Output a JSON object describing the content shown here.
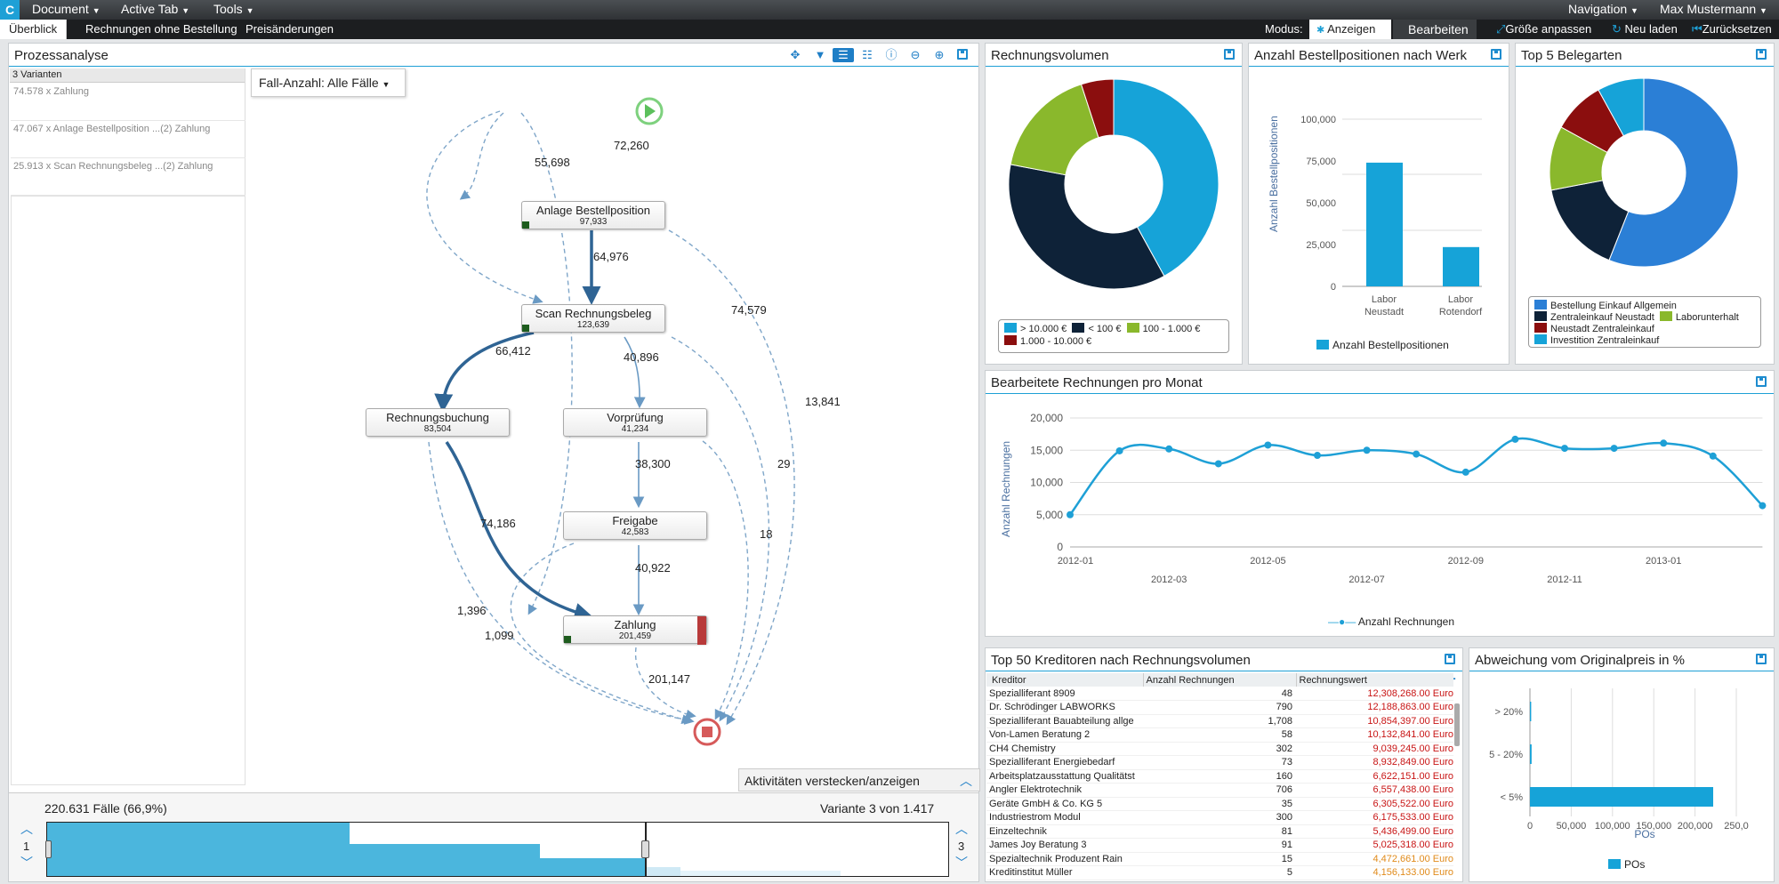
{
  "menu": {
    "logo": "C",
    "document": "Document",
    "active_tab": "Active Tab",
    "tools": "Tools",
    "navigation": "Navigation",
    "user": "Max Mustermann"
  },
  "tabs": [
    "Überblick",
    "Rechnungen ohne Bestellung",
    "Preisänderungen"
  ],
  "toolbar": {
    "mode_label": "Modus:",
    "view_label": "Anzeigen",
    "edit_label": "Bearbeiten",
    "fit_label": "Größe anpassen",
    "reload_label": "Neu laden",
    "reset_label": "Zurücksetzen"
  },
  "process": {
    "title": "Prozessanalyse",
    "variants_header": "3 Varianten",
    "variants": [
      "74.578 x Zahlung",
      "47.067 x Anlage Bestellposition ...(2) Zahlung",
      "25.913 x Scan Rechnungsbeleg ...(2) Zahlung"
    ],
    "case_filter": "Fall-Anzahl: Alle Fälle",
    "nodes": [
      {
        "name": "Anlage Bestellposition",
        "count": "97,933"
      },
      {
        "name": "Scan Rechnungsbeleg",
        "count": "123,639"
      },
      {
        "name": "Rechnungsbuchung",
        "count": "83,504"
      },
      {
        "name": "Vorprüfung",
        "count": "41,234"
      },
      {
        "name": "Freigabe",
        "count": "42,583"
      },
      {
        "name": "Zahlung",
        "count": "201,459"
      }
    ],
    "edges": [
      "55,698",
      "72,260",
      "64,976",
      "74,579",
      "66,412",
      "40,896",
      "13,841",
      "38,300",
      "29",
      "74,186",
      "18",
      "1,396",
      "1,099",
      "40,922",
      "201,147"
    ],
    "toggle_activities": "Aktivitäten verstecken/anzeigen",
    "cases_summary": "220.631 Fälle (66,9%)",
    "variant_summary": "Variante 3 von 1.417",
    "slider_min": "1",
    "slider_max": "3"
  },
  "colors": {
    "accent": "#1ea0d6",
    "navy": "#0e2238",
    "green": "#8ab82c",
    "darkred": "#8b0e0e"
  },
  "volume": {
    "title": "Rechnungsvolumen",
    "legend": [
      "> 10.000 €",
      "< 100 €",
      "100 - 1.000 €",
      "1.000 - 10.000 €"
    ],
    "slices": [
      {
        "label": "> 10.000 €",
        "value": 42,
        "color": "#16a3d8"
      },
      {
        "label": "< 100 €",
        "value": 36,
        "color": "#0e2238"
      },
      {
        "label": "100 - 1.000 €",
        "value": 17,
        "color": "#8ab82c"
      },
      {
        "label": "1.000 - 10.000 €",
        "value": 5,
        "color": "#8b0e0e"
      }
    ]
  },
  "werk": {
    "title": "Anzahl Bestellpositionen nach Werk",
    "ylabel": "Anzahl Bestellpositionen",
    "legend": "Anzahl Bestellpositionen",
    "ticks": [
      "100,000",
      "75,000",
      "50,000",
      "25,000",
      "0"
    ],
    "categories": [
      [
        "Labor",
        "Neustadt"
      ],
      [
        "Labor",
        "Rotendorf"
      ]
    ],
    "values": [
      74000,
      23500
    ]
  },
  "belegarten": {
    "title": "Top 5 Belegarten",
    "legend": [
      "Bestellung Einkauf Allgemein",
      "Zentraleinkauf Neustadt",
      "Laborunterhalt",
      "Neustadt Zentraleinkauf",
      "Investition Zentraleinkauf"
    ],
    "slices": [
      {
        "label": "Bestellung Einkauf Allgemein",
        "value": 56,
        "color": "#2b7fd6"
      },
      {
        "label": "Zentraleinkauf Neustadt",
        "value": 16,
        "color": "#0e2238"
      },
      {
        "label": "Laborunterhalt",
        "value": 11,
        "color": "#8ab82c"
      },
      {
        "label": "Neustadt Zentraleinkauf",
        "value": 9,
        "color": "#8b0e0e"
      },
      {
        "label": "Investition Zentraleinkauf",
        "value": 8,
        "color": "#16a3d8"
      }
    ]
  },
  "monthly": {
    "title": "Bearbeitete Rechnungen pro Monat",
    "ylabel": "Anzahl Rechnungen",
    "legend": "Anzahl Rechnungen",
    "yticks": [
      "20,000",
      "15,000",
      "10,000",
      "5,000",
      "0"
    ],
    "xticks": [
      "2012-01",
      "2012-03",
      "2012-05",
      "2012-07",
      "2012-09",
      "2012-11",
      "2013-01"
    ]
  },
  "chart_data": {
    "type": "line",
    "title": "Bearbeitete Rechnungen pro Monat",
    "xlabel": "",
    "ylabel": "Anzahl Rechnungen",
    "ylim": [
      0,
      20000
    ],
    "x": [
      "2012-01",
      "2012-02",
      "2012-03",
      "2012-04",
      "2012-05",
      "2012-06",
      "2012-07",
      "2012-08",
      "2012-09",
      "2012-10",
      "2012-11",
      "2012-12",
      "2013-01",
      "2013-02",
      "2013-03"
    ],
    "series": [
      {
        "name": "Anzahl Rechnungen",
        "values": [
          5000,
          14900,
          15200,
          12900,
          15800,
          14200,
          15000,
          14400,
          11600,
          16700,
          15300,
          15300,
          16100,
          14100,
          6400
        ]
      }
    ]
  },
  "creditors": {
    "title": "Top 50 Kreditoren nach Rechnungsvolumen",
    "columns": [
      "Kreditor",
      "Anzahl Rechnungen",
      "Rechnungswert"
    ],
    "rows": [
      [
        "Spezialliferant 8909",
        "48",
        "12,308,268.00 Euro"
      ],
      [
        "Dr. Schrödinger LABWORKS",
        "790",
        "12,188,863.00 Euro"
      ],
      [
        "Spezialliferant Bauabteilung allge",
        "1,708",
        "10,854,397.00 Euro"
      ],
      [
        "Von-Lamen Beratung 2",
        "58",
        "10,132,841.00 Euro"
      ],
      [
        "CH4 Chemistry",
        "302",
        "9,039,245.00 Euro"
      ],
      [
        "Spezialliferant Energiebedarf",
        "73",
        "8,932,849.00 Euro"
      ],
      [
        "Arbeitsplatzausstattung Qualitätst",
        "160",
        "6,622,151.00 Euro"
      ],
      [
        "Angler Elektrotechnik",
        "706",
        "6,557,438.00 Euro"
      ],
      [
        "Geräte GmbH & Co. KG 5",
        "35",
        "6,305,522.00 Euro"
      ],
      [
        "Industriestrom Modul",
        "300",
        "6,175,533.00 Euro"
      ],
      [
        "Einzeltechnik",
        "81",
        "5,436,499.00 Euro"
      ],
      [
        "James Joy Beratung 3",
        "91",
        "5,025,318.00 Euro"
      ],
      [
        "Spezialtechnik Produzent Rain",
        "15",
        "4,472,661.00 Euro"
      ],
      [
        "Kreditinstitut Müller",
        "5",
        "4,156,133.00 Euro"
      ]
    ]
  },
  "deviation": {
    "title": "Abweichung vom Originalpreis in %",
    "categories": [
      "> 20%",
      "5 - 20%",
      "< 5%"
    ],
    "values": [
      1500,
      2000,
      222000
    ],
    "xticks": [
      "0",
      "50,000",
      "100,000",
      "150,000",
      "200,000",
      "250,0"
    ],
    "xlabel": "POs",
    "legend": "POs"
  }
}
